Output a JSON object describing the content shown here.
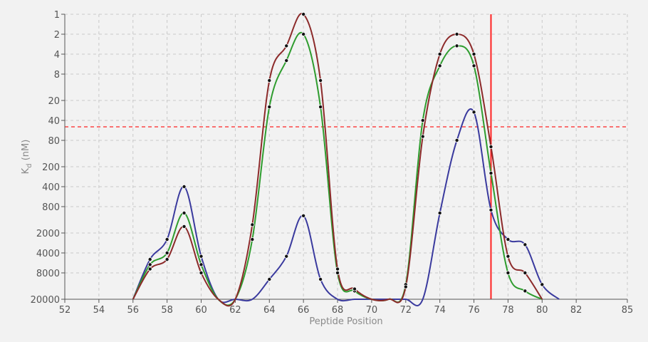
{
  "chart_data": {
    "type": "line",
    "xlabel": "Peptide Position",
    "ylabel_main": "K",
    "ylabel_sub": "d",
    "ylabel_unit": " (nM)",
    "y_scale": "log, inverted",
    "xlim": [
      52,
      85
    ],
    "ylim": [
      1,
      20000
    ],
    "x_ticks": [
      "52",
      "54",
      "56",
      "58",
      "60",
      "62",
      "64",
      "66",
      "68",
      "70",
      "72",
      "74",
      "76",
      "78",
      "80",
      "82",
      "85"
    ],
    "y_ticks": [
      "1",
      "2",
      "4",
      "8",
      "20",
      "40",
      "80",
      "200",
      "400",
      "800",
      "2000",
      "4000",
      "8000",
      "20000"
    ],
    "grid": true,
    "reference_lines": {
      "horizontal_dashed_y": 50,
      "vertical_solid_x": 77,
      "color": "#ff2222"
    },
    "series": [
      {
        "color": "#3a3a9e",
        "points": [
          [
            56,
            20000
          ],
          [
            57,
            5000
          ],
          [
            58,
            2500
          ],
          [
            59,
            400
          ],
          [
            60,
            4500
          ],
          [
            61,
            20000
          ],
          [
            62,
            20000
          ],
          [
            63,
            20000
          ],
          [
            64,
            10000
          ],
          [
            65,
            4500
          ],
          [
            66,
            1100
          ],
          [
            67,
            10000
          ],
          [
            68,
            20000
          ],
          [
            69,
            20000
          ],
          [
            70,
            20000
          ],
          [
            71,
            20000
          ],
          [
            72,
            20000
          ],
          [
            73,
            20000
          ],
          [
            74,
            1000
          ],
          [
            75,
            80
          ],
          [
            76,
            30
          ],
          [
            77,
            900
          ],
          [
            78,
            2500
          ],
          [
            79,
            3000
          ],
          [
            80,
            12000
          ],
          [
            81,
            20000
          ]
        ]
      },
      {
        "color": "#2e9c2e",
        "points": [
          [
            56,
            20000
          ],
          [
            57,
            6000
          ],
          [
            58,
            4000
          ],
          [
            59,
            1000
          ],
          [
            60,
            6000
          ],
          [
            61,
            20000
          ],
          [
            62,
            20000
          ],
          [
            63,
            2500
          ],
          [
            64,
            25
          ],
          [
            65,
            5
          ],
          [
            66,
            2
          ],
          [
            67,
            25
          ],
          [
            68,
            8000
          ],
          [
            69,
            15000
          ],
          [
            70,
            20000
          ],
          [
            71,
            20000
          ],
          [
            72,
            12000
          ],
          [
            73,
            40
          ],
          [
            74,
            6
          ],
          [
            75,
            3
          ],
          [
            76,
            6
          ],
          [
            77,
            250
          ],
          [
            78,
            8000
          ],
          [
            79,
            15000
          ],
          [
            80,
            20000
          ]
        ]
      },
      {
        "color": "#8c2a2a",
        "points": [
          [
            56,
            20000
          ],
          [
            57,
            7000
          ],
          [
            58,
            5000
          ],
          [
            59,
            1600
          ],
          [
            60,
            8000
          ],
          [
            61,
            20000
          ],
          [
            62,
            20000
          ],
          [
            63,
            1500
          ],
          [
            64,
            10
          ],
          [
            65,
            3
          ],
          [
            66,
            1
          ],
          [
            67,
            10
          ],
          [
            68,
            7000
          ],
          [
            69,
            14000
          ],
          [
            70,
            20000
          ],
          [
            71,
            20000
          ],
          [
            72,
            13000
          ],
          [
            73,
            70
          ],
          [
            74,
            4
          ],
          [
            75,
            2
          ],
          [
            76,
            4
          ],
          [
            77,
            100
          ],
          [
            78,
            4500
          ],
          [
            79,
            8000
          ],
          [
            80,
            20000
          ]
        ]
      }
    ]
  }
}
